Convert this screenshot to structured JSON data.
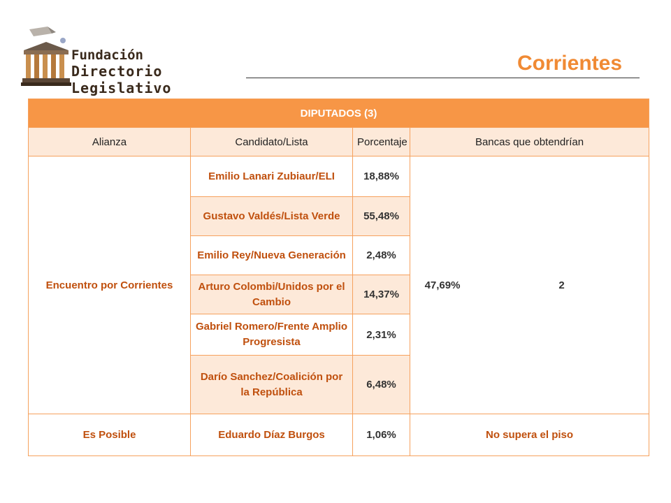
{
  "logo": {
    "line1": "Fundación",
    "line2": "Directorio Legislativo"
  },
  "page_title": "Corrientes",
  "table": {
    "header": "DIPUTADOS (3)",
    "columns": [
      "Alianza",
      "Candidato/Lista",
      "Porcentaje",
      "Bancas que obtendrían"
    ],
    "group1": {
      "alianza": "Encuentro por Corrientes",
      "porcentaje_total": "47,69%",
      "bancas": "2",
      "rows": [
        {
          "candidato": "Emilio Lanari Zubiaur/ELI",
          "porcentaje": "18,88%"
        },
        {
          "candidato": "Gustavo Valdés/Lista Verde",
          "porcentaje": "55,48%"
        },
        {
          "candidato": "Emilio Rey/Nueva Generación",
          "porcentaje": "2,48%"
        },
        {
          "candidato": "Arturo Colombi/Unidos por el Cambio",
          "porcentaje": "14,37%"
        },
        {
          "candidato": "Gabriel Romero/Frente Amplio Progresista",
          "porcentaje": "2,31%"
        },
        {
          "candidato": "Darío Sanchez/Coalición por la República",
          "porcentaje": "6,48%"
        }
      ]
    },
    "group2": {
      "alianza": "Es Posible",
      "candidato": "Eduardo Díaz Burgos",
      "porcentaje": "1,06%",
      "bancas": "No supera el piso"
    }
  }
}
